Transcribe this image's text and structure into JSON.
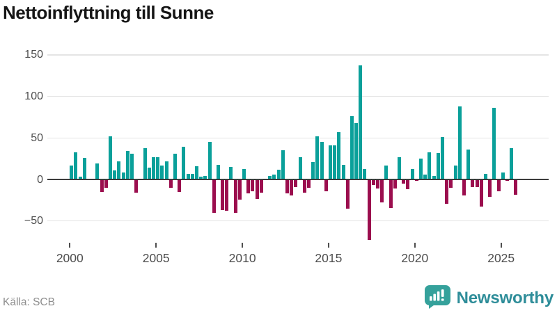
{
  "header": {
    "title": "Nettoinflyttning till Sunne"
  },
  "footer": {
    "source": "Källa: SCB",
    "brand": "Newsworthy"
  },
  "chart_data": {
    "type": "bar",
    "title": "Nettoinflyttning till Sunne",
    "xlabel": "",
    "ylabel": "",
    "frequency": "quarterly",
    "start_period": "2000 Q1",
    "end_period": "2025 Q4",
    "ylim": [
      -80,
      155
    ],
    "grid": true,
    "y_ticks": [
      150,
      100,
      50,
      0,
      -50
    ],
    "y_tick_labels": [
      "150",
      "100",
      "50",
      "0",
      "−50"
    ],
    "x_tick_years": [
      2000,
      2005,
      2010,
      2015,
      2020,
      2025
    ],
    "x_tick_labels": [
      "2000",
      "2005",
      "2010",
      "2015",
      "2020",
      "2025"
    ],
    "colors": {
      "positive": "#0AA09A",
      "negative": "#9B0E4E",
      "brand_teal": "#35A19B",
      "brand_text": "#2E8D99"
    },
    "values": [
      17,
      33,
      3,
      26,
      0,
      0,
      19,
      -15,
      -10,
      52,
      11,
      22,
      8,
      34,
      31,
      -16,
      0,
      38,
      14,
      27,
      27,
      17,
      22,
      -10,
      31,
      -15,
      39,
      7,
      7,
      16,
      3,
      4,
      45,
      -40,
      18,
      -37,
      -38,
      15,
      -40,
      -24,
      13,
      -17,
      -14,
      -23,
      -16,
      0,
      4,
      6,
      12,
      35,
      -17,
      -19,
      -9,
      27,
      -16,
      -10,
      21,
      52,
      45,
      -14,
      41,
      41,
      57,
      18,
      -35,
      76,
      68,
      137,
      13,
      -73,
      -7,
      -11,
      -28,
      17,
      -34,
      -11,
      27,
      -5,
      -12,
      13,
      -2,
      25,
      6,
      33,
      4,
      32,
      51,
      -29,
      -10,
      17,
      88,
      -19,
      36,
      -9,
      -9,
      -33,
      7,
      -21,
      86,
      -14,
      8,
      -2,
      38,
      -18
    ]
  }
}
